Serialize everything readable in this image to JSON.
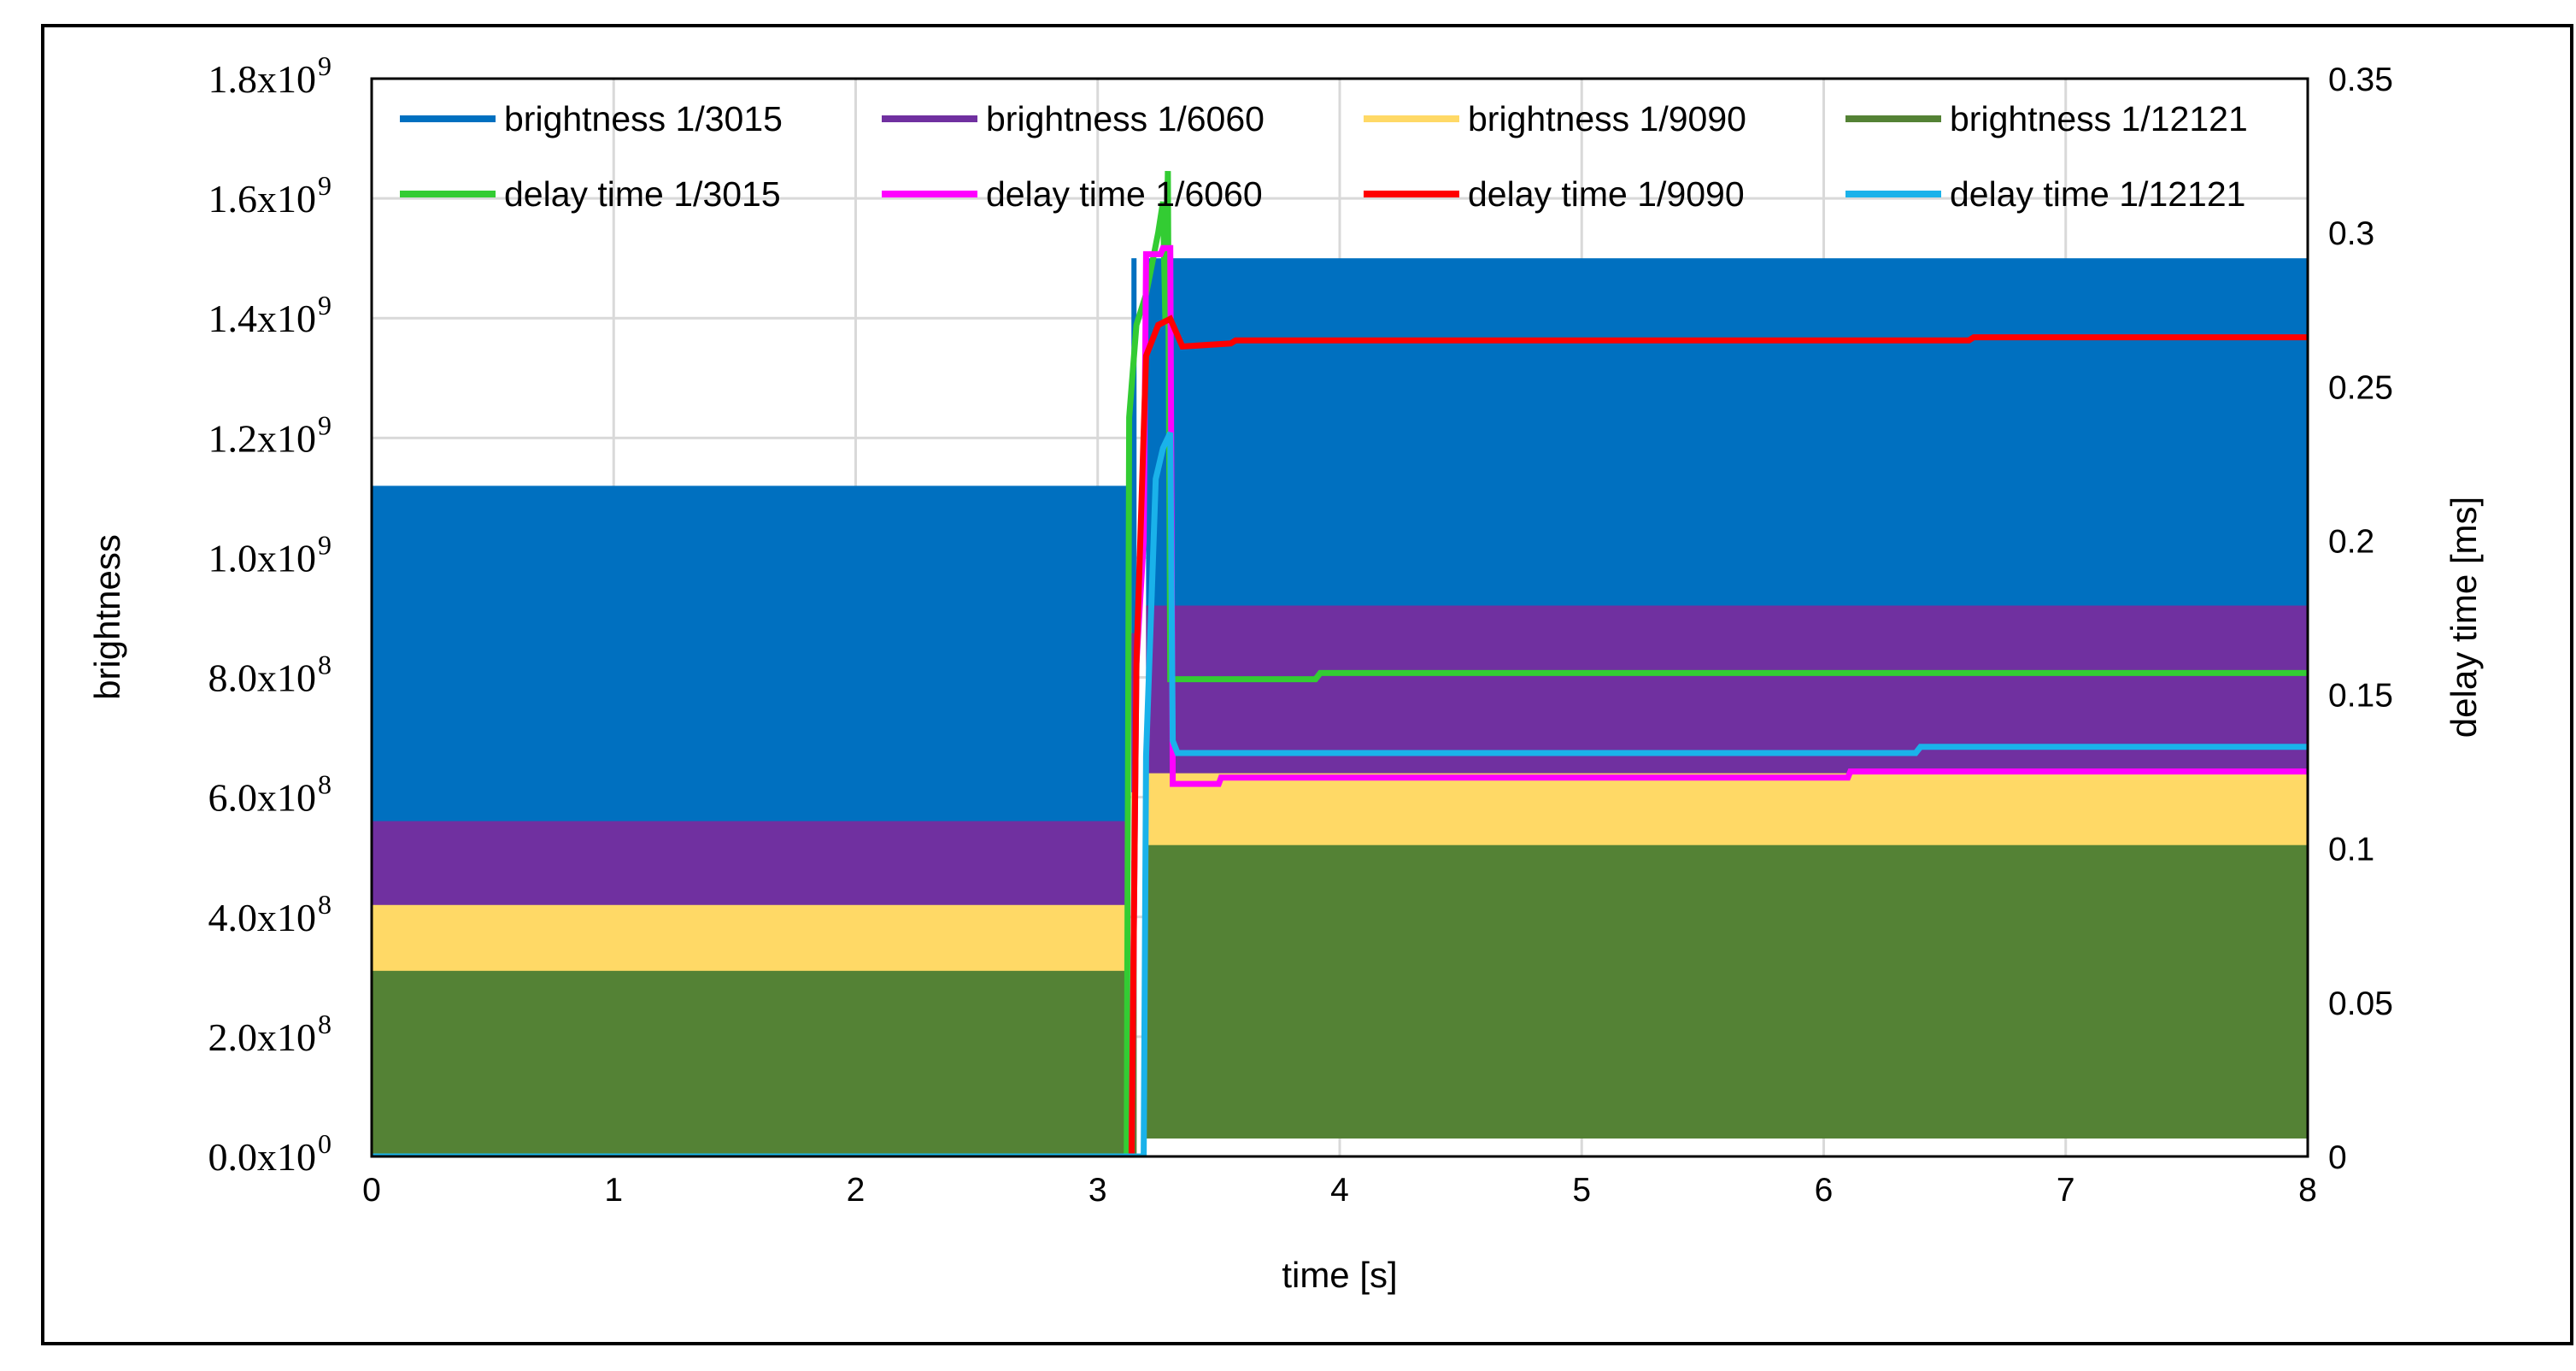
{
  "chart_data": {
    "type": "line",
    "title": "",
    "xlabel": "time [s]",
    "ylabel": "brightness",
    "y2label": "delay time [ms]",
    "xlim": [
      0,
      8
    ],
    "ylim": [
      0,
      1800000000
    ],
    "y2lim": [
      0,
      0.35
    ],
    "x_ticks": [
      "0",
      "1",
      "2",
      "3",
      "4",
      "5",
      "6",
      "7",
      "8"
    ],
    "y_ticks": [
      {
        "mant": "0.0x10",
        "exp": "0"
      },
      {
        "mant": "2.0x10",
        "exp": "8"
      },
      {
        "mant": "4.0x10",
        "exp": "8"
      },
      {
        "mant": "6.0x10",
        "exp": "8"
      },
      {
        "mant": "8.0x10",
        "exp": "8"
      },
      {
        "mant": "1.0x10",
        "exp": "9"
      },
      {
        "mant": "1.2x10",
        "exp": "9"
      },
      {
        "mant": "1.4x10",
        "exp": "9"
      },
      {
        "mant": "1.6x10",
        "exp": "9"
      },
      {
        "mant": "1.8x10",
        "exp": "9"
      }
    ],
    "y2_ticks": [
      "0",
      "0.05",
      "0.1",
      "0.15",
      "0.2",
      "0.25",
      "0.3",
      "0.35"
    ],
    "grid": true,
    "legend_position": "top",
    "brightness_series": [
      {
        "name": "brightness 1/3015",
        "color": "#0070C0",
        "before": {
          "x": [
            0,
            3.13
          ],
          "min": 0,
          "max": 1120000000
        },
        "after": {
          "x": [
            3.2,
            8
          ],
          "min": 30000000,
          "max": 1500000000
        }
      },
      {
        "name": "brightness 1/6060",
        "color": "#7030A0",
        "before": {
          "x": [
            0,
            3.13
          ],
          "min": 0,
          "max": 560000000
        },
        "after": {
          "x": [
            3.2,
            8
          ],
          "min": 30000000,
          "max": 920000000
        }
      },
      {
        "name": "brightness 1/9090",
        "color": "#FFD966",
        "before": {
          "x": [
            0,
            3.13
          ],
          "min": 0,
          "max": 420000000
        },
        "after": {
          "x": [
            3.2,
            8
          ],
          "min": 30000000,
          "max": 640000000
        }
      },
      {
        "name": "brightness 1/12121",
        "color": "#548235",
        "before": {
          "x": [
            0,
            3.13
          ],
          "min": 0,
          "max": 310000000
        },
        "after": {
          "x": [
            3.2,
            8
          ],
          "min": 30000000,
          "max": 520000000
        }
      }
    ],
    "delay_series": [
      {
        "name": "delay time 1/3015",
        "color": "#33CC33",
        "x": [
          0,
          3.12,
          3.13,
          3.16,
          3.2,
          3.25,
          3.27,
          3.28,
          3.29,
          3.3,
          3.32,
          3.9,
          3.92,
          8
        ],
        "y": [
          0,
          0,
          0.24,
          0.27,
          0.28,
          0.3,
          0.31,
          0.27,
          0.32,
          0.155,
          0.155,
          0.155,
          0.157,
          0.157
        ]
      },
      {
        "name": "delay time 1/6060",
        "color": "#FF00FF",
        "x": [
          0,
          3.14,
          3.16,
          3.19,
          3.2,
          3.26,
          3.27,
          3.3,
          3.31,
          3.5,
          3.51,
          6.1,
          6.11,
          8
        ],
        "y": [
          0,
          0,
          0.16,
          0.2,
          0.293,
          0.293,
          0.295,
          0.295,
          0.121,
          0.121,
          0.123,
          0.123,
          0.125,
          0.125
        ]
      },
      {
        "name": "delay time 1/9090",
        "color": "#FF0000",
        "x": [
          0,
          3.14,
          3.16,
          3.2,
          3.25,
          3.3,
          3.35,
          3.55,
          3.57,
          6.6,
          6.62,
          8
        ],
        "y": [
          0,
          0,
          0.16,
          0.26,
          0.27,
          0.272,
          0.263,
          0.264,
          0.265,
          0.265,
          0.266,
          0.266
        ]
      },
      {
        "name": "delay time 1/12121",
        "color": "#1AB2EA",
        "x": [
          0,
          3.19,
          3.2,
          3.24,
          3.27,
          3.3,
          3.31,
          3.33,
          6.38,
          6.4,
          8
        ],
        "y": [
          0,
          0,
          0.13,
          0.22,
          0.23,
          0.235,
          0.135,
          0.131,
          0.131,
          0.133,
          0.133
        ]
      }
    ]
  }
}
